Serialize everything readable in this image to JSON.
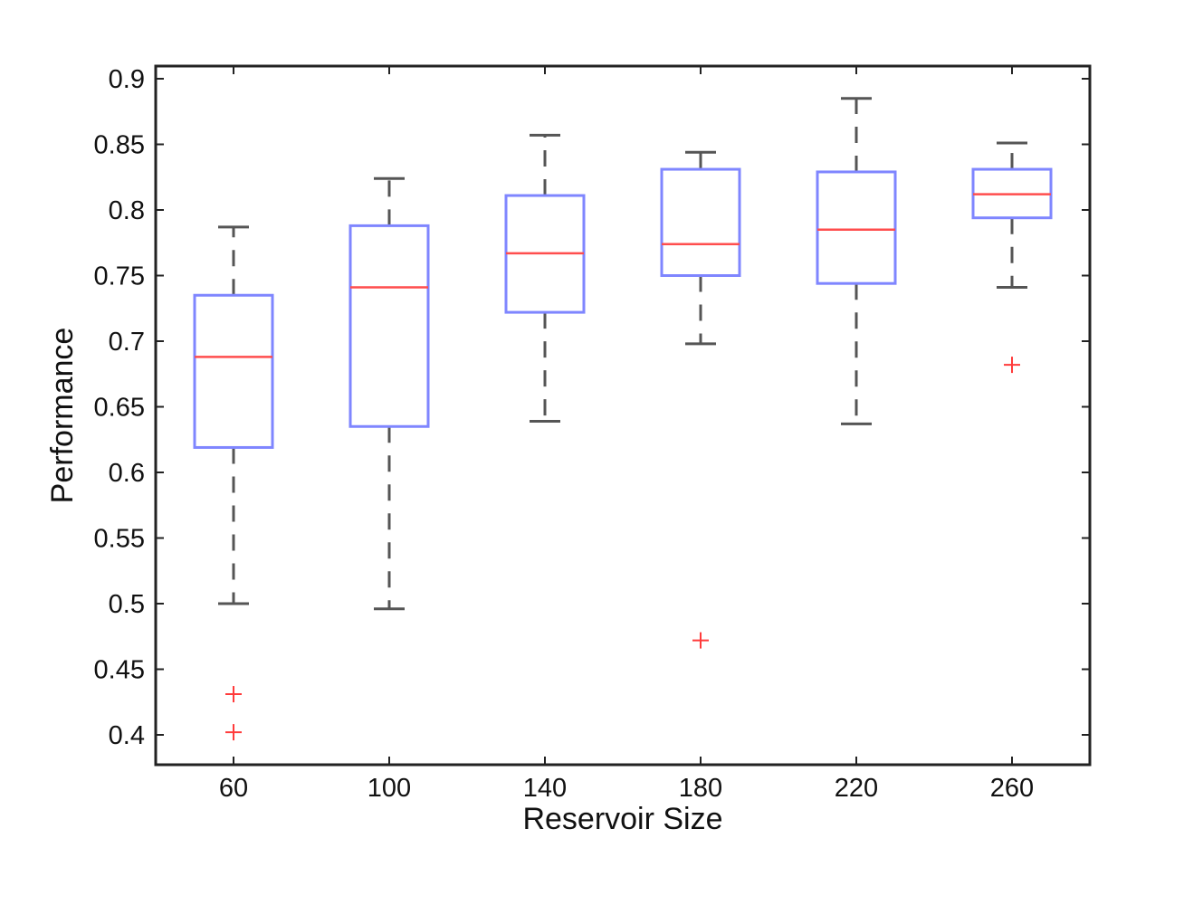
{
  "chart_data": {
    "type": "box",
    "xlabel": "Reservoir Size",
    "ylabel": "Performance",
    "ylim": [
      0.38,
      0.91
    ],
    "yticks": [
      0.4,
      0.45,
      0.5,
      0.55,
      0.6,
      0.65,
      0.7,
      0.75,
      0.8,
      0.85,
      0.9
    ],
    "ytick_labels": [
      "0.4",
      "0.45",
      "0.5",
      "0.55",
      "0.6",
      "0.65",
      "0.7",
      "0.75",
      "0.8",
      "0.85",
      "0.9"
    ],
    "categories": [
      "60",
      "100",
      "140",
      "180",
      "220",
      "260"
    ],
    "boxes": [
      {
        "min": 0.5,
        "q1": 0.619,
        "median": 0.688,
        "q3": 0.735,
        "max": 0.787,
        "outliers": [
          0.431,
          0.402
        ]
      },
      {
        "min": 0.496,
        "q1": 0.635,
        "median": 0.741,
        "q3": 0.788,
        "max": 0.824,
        "outliers": []
      },
      {
        "min": 0.639,
        "q1": 0.722,
        "median": 0.767,
        "q3": 0.811,
        "max": 0.857,
        "outliers": []
      },
      {
        "min": 0.698,
        "q1": 0.75,
        "median": 0.774,
        "q3": 0.831,
        "max": 0.844,
        "outliers": [
          0.472
        ]
      },
      {
        "min": 0.637,
        "q1": 0.744,
        "median": 0.785,
        "q3": 0.829,
        "max": 0.885,
        "outliers": []
      },
      {
        "min": 0.741,
        "q1": 0.794,
        "median": 0.812,
        "q3": 0.831,
        "max": 0.851,
        "outliers": [
          0.682
        ]
      }
    ],
    "colors": {
      "box": "#7f86ff",
      "median": "#ff4d4d",
      "whisker": "#555555",
      "outlier": "#ff3b3b",
      "axes": "#222222"
    },
    "grid": false
  }
}
